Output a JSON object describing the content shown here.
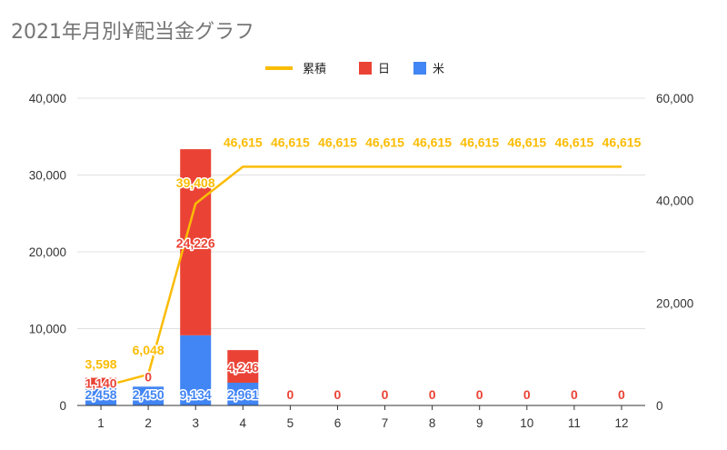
{
  "title": "2021年月別¥配当金グラフ",
  "colors": {
    "cumulative": "#fbbc04",
    "jp": "#ea4335",
    "us": "#4285f4"
  },
  "legend": [
    {
      "key": "cumulative",
      "label": "累積",
      "shape": "line",
      "color": "#fbbc04"
    },
    {
      "key": "jp",
      "label": "日",
      "shape": "square",
      "color": "#ea4335"
    },
    {
      "key": "us",
      "label": "米",
      "shape": "square",
      "color": "#4285f4"
    }
  ],
  "chart_data": {
    "type": "bar",
    "stacked": true,
    "legend_position": "top",
    "categories": [
      "1",
      "2",
      "3",
      "4",
      "5",
      "6",
      "7",
      "8",
      "9",
      "10",
      "11",
      "12"
    ],
    "series": [
      {
        "name": "米",
        "type": "bar",
        "axis": "left",
        "color": "#4285f4",
        "values": [
          2458,
          2450,
          9134,
          2961,
          0,
          0,
          0,
          0,
          0,
          0,
          0,
          0
        ],
        "labels": [
          "2,458",
          "2,450",
          "9,134",
          "2,961",
          "",
          "",
          "",
          "",
          "",
          "",
          "",
          ""
        ]
      },
      {
        "name": "日",
        "type": "bar",
        "axis": "left",
        "color": "#ea4335",
        "values": [
          1140,
          0,
          24226,
          4246,
          0,
          0,
          0,
          0,
          0,
          0,
          0,
          0
        ],
        "labels": [
          "1,140",
          "0",
          "24,226",
          "4,246",
          "0",
          "0",
          "0",
          "0",
          "0",
          "0",
          "0",
          "0"
        ]
      },
      {
        "name": "累積",
        "type": "line",
        "axis": "right",
        "color": "#fbbc04",
        "values": [
          3598,
          6048,
          39408,
          46615,
          46615,
          46615,
          46615,
          46615,
          46615,
          46615,
          46615,
          46615
        ],
        "labels": [
          "3,598",
          "6,048",
          "39,408",
          "46,615",
          "46,615",
          "46,615",
          "46,615",
          "46,615",
          "46,615",
          "46,615",
          "46,615",
          "46,615"
        ]
      }
    ],
    "left_axis": {
      "ylim": [
        0,
        40000
      ],
      "ticks": [
        0,
        10000,
        20000,
        30000,
        40000
      ],
      "tick_labels": [
        "0",
        "10,000",
        "20,000",
        "30,000",
        "40,000"
      ]
    },
    "right_axis": {
      "ylim": [
        0,
        60000
      ],
      "ticks": [
        0,
        20000,
        40000,
        60000
      ],
      "tick_labels": [
        "0",
        "20,000",
        "40,000",
        "60,000"
      ]
    },
    "grid": true
  }
}
